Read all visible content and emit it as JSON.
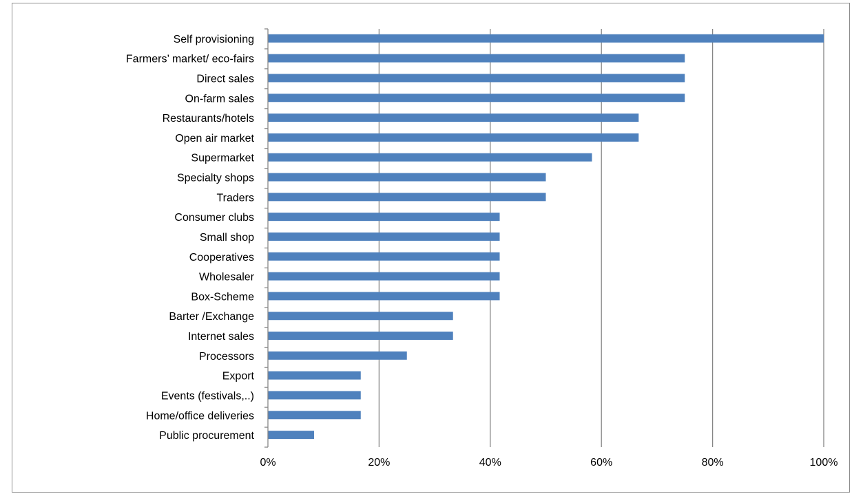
{
  "chart_data": {
    "type": "bar",
    "orientation": "horizontal",
    "categories": [
      "Self provisioning",
      "Farmers’ market/ eco-fairs",
      "Direct sales",
      "On-farm sales",
      "Restaurants/hotels",
      "Open air market",
      "Supermarket",
      "Specialty shops",
      "Traders",
      "Consumer clubs",
      "Small shop",
      "Cooperatives",
      "Wholesaler",
      "Box-Scheme",
      "Barter /Exchange",
      "Internet sales",
      "Processors",
      "Export",
      "Events (festivals,..)",
      "Home/office deliveries",
      "Public procurement"
    ],
    "values": [
      100,
      75,
      75,
      75,
      66.7,
      66.7,
      58.3,
      50,
      50,
      41.7,
      41.7,
      41.7,
      41.7,
      41.7,
      33.3,
      33.3,
      25,
      16.7,
      16.7,
      16.7,
      8.3
    ],
    "xlim": [
      0,
      100
    ],
    "xticks": [
      "0%",
      "20%",
      "40%",
      "60%",
      "80%",
      "100%"
    ],
    "title": "",
    "xlabel": "",
    "ylabel": "",
    "grid": "vertical",
    "legend": "none",
    "bar_color": "#4f81bd",
    "grid_color": "#868686"
  }
}
